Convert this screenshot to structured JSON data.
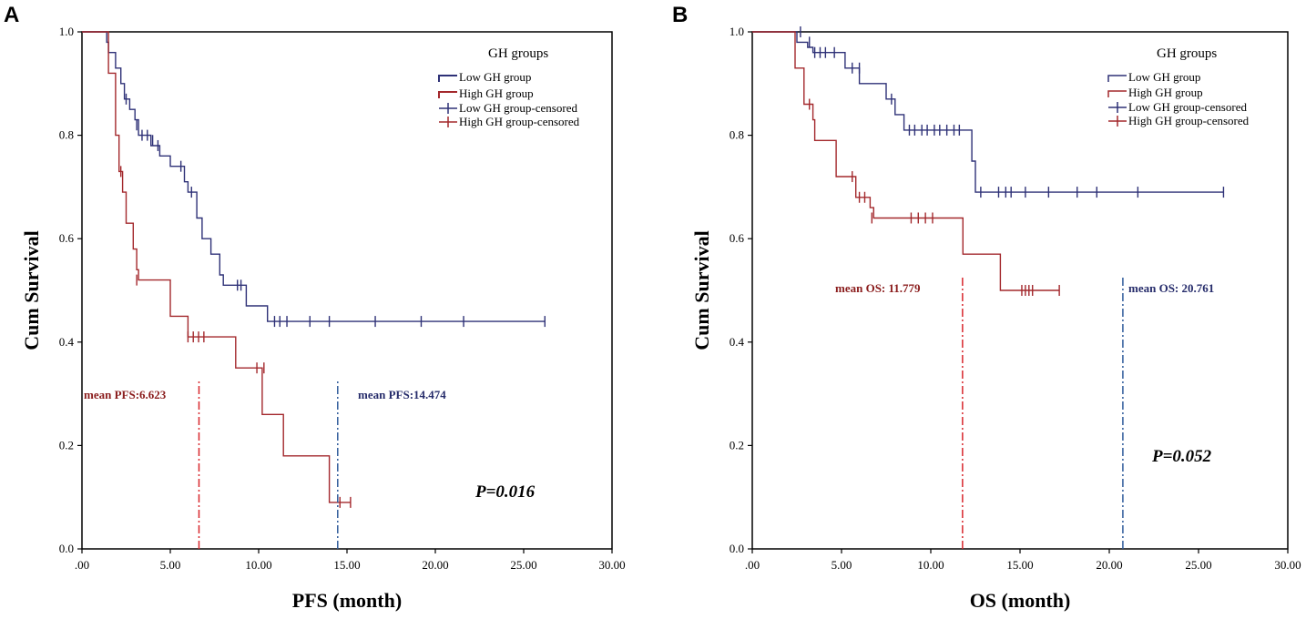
{
  "colors": {
    "low": "#2e3177",
    "high": "#a3282c",
    "low_text": "#262c6b",
    "high_text": "#8a1c1c",
    "high_mean_line": "#d8262b",
    "low_mean_line": "#2f5b9b"
  },
  "chart_data": [
    {
      "panel_label": "A",
      "type": "line",
      "step": true,
      "xlabel": "PFS (month)",
      "ylabel": "Cum Survival",
      "xlim": [
        0,
        30
      ],
      "ylim": [
        0,
        1
      ],
      "xticks": [
        ".00",
        "5.00",
        "10.00",
        "15.00",
        "20.00",
        "25.00",
        "30.00"
      ],
      "yticks": [
        "0.0",
        "0.2",
        "0.4",
        "0.6",
        "0.8",
        "1.0"
      ],
      "legend_title": "GH groups",
      "legend": [
        "Low GH group",
        "High GH group",
        "Low GH group-censored",
        "High GH group-censored"
      ],
      "p_value": "P=0.016",
      "series": [
        {
          "name": "Low GH group",
          "steps": [
            [
              0,
              1.0
            ],
            [
              1.3,
              1.0
            ],
            [
              1.4,
              0.98
            ],
            [
              1.5,
              0.96
            ],
            [
              1.9,
              0.93
            ],
            [
              2.2,
              0.9
            ],
            [
              2.4,
              0.87
            ],
            [
              2.7,
              0.85
            ],
            [
              3.0,
              0.83
            ],
            [
              3.2,
              0.8
            ],
            [
              3.9,
              0.78
            ],
            [
              4.4,
              0.76
            ],
            [
              5.0,
              0.74
            ],
            [
              5.8,
              0.71
            ],
            [
              6.0,
              0.69
            ],
            [
              6.5,
              0.64
            ],
            [
              6.8,
              0.6
            ],
            [
              7.3,
              0.57
            ],
            [
              7.8,
              0.53
            ],
            [
              8.0,
              0.51
            ],
            [
              9.1,
              0.51
            ],
            [
              9.3,
              0.47
            ],
            [
              10.5,
              0.44
            ],
            [
              26.2,
              0.44
            ]
          ],
          "censored": [
            [
              2.5,
              0.87
            ],
            [
              3.1,
              0.82
            ],
            [
              3.4,
              0.8
            ],
            [
              3.7,
              0.8
            ],
            [
              4.0,
              0.79
            ],
            [
              4.3,
              0.78
            ],
            [
              5.6,
              0.74
            ],
            [
              6.2,
              0.69
            ],
            [
              8.8,
              0.51
            ],
            [
              9.0,
              0.51
            ],
            [
              10.9,
              0.44
            ],
            [
              11.2,
              0.44
            ],
            [
              11.6,
              0.44
            ],
            [
              12.9,
              0.44
            ],
            [
              14.0,
              0.44
            ],
            [
              16.6,
              0.44
            ],
            [
              19.2,
              0.44
            ],
            [
              21.6,
              0.44
            ],
            [
              26.2,
              0.44
            ]
          ]
        },
        {
          "name": "High GH group",
          "steps": [
            [
              0,
              1.0
            ],
            [
              1.3,
              1.0
            ],
            [
              1.5,
              0.92
            ],
            [
              1.9,
              0.8
            ],
            [
              2.1,
              0.73
            ],
            [
              2.3,
              0.69
            ],
            [
              2.5,
              0.63
            ],
            [
              2.8,
              0.63
            ],
            [
              2.9,
              0.58
            ],
            [
              3.1,
              0.54
            ],
            [
              3.2,
              0.52
            ],
            [
              4.9,
              0.52
            ],
            [
              5.0,
              0.45
            ],
            [
              5.9,
              0.45
            ],
            [
              6.0,
              0.41
            ],
            [
              8.6,
              0.41
            ],
            [
              8.7,
              0.35
            ],
            [
              10.1,
              0.35
            ],
            [
              10.2,
              0.26
            ],
            [
              11.3,
              0.26
            ],
            [
              11.4,
              0.18
            ],
            [
              13.9,
              0.18
            ],
            [
              14.0,
              0.09
            ],
            [
              15.2,
              0.09
            ]
          ],
          "censored": [
            [
              2.2,
              0.73
            ],
            [
              3.1,
              0.52
            ],
            [
              6.0,
              0.41
            ],
            [
              6.3,
              0.41
            ],
            [
              6.6,
              0.41
            ],
            [
              6.9,
              0.41
            ],
            [
              9.9,
              0.35
            ],
            [
              10.3,
              0.35
            ],
            [
              14.6,
              0.09
            ],
            [
              15.2,
              0.09
            ]
          ]
        }
      ],
      "annotations": [
        {
          "label": "mean PFS:6.623",
          "value": 6.623,
          "group": "high"
        },
        {
          "label": "mean PFS:14.474",
          "value": 14.474,
          "group": "low"
        }
      ]
    },
    {
      "panel_label": "B",
      "type": "line",
      "step": true,
      "xlabel": "OS (month)",
      "ylabel": "Cum Survival",
      "xlim": [
        0,
        30
      ],
      "ylim": [
        0,
        1
      ],
      "xticks": [
        ".00",
        "5.00",
        "10.00",
        "15.00",
        "20.00",
        "25.00",
        "30.00"
      ],
      "yticks": [
        "0.0",
        "0.2",
        "0.4",
        "0.6",
        "0.8",
        "1.0"
      ],
      "legend_title": "GH groups",
      "legend": [
        "Low GH group",
        "High GH group",
        "Low GH group-censored",
        "High GH group-censored"
      ],
      "p_value": "P=0.052",
      "series": [
        {
          "name": "Low GH group",
          "steps": [
            [
              0,
              1.0
            ],
            [
              2.3,
              1.0
            ],
            [
              2.5,
              0.98
            ],
            [
              3.1,
              0.97
            ],
            [
              3.4,
              0.96
            ],
            [
              5.2,
              0.93
            ],
            [
              6.0,
              0.9
            ],
            [
              7.5,
              0.87
            ],
            [
              8.0,
              0.84
            ],
            [
              8.5,
              0.81
            ],
            [
              12.1,
              0.81
            ],
            [
              12.3,
              0.75
            ],
            [
              12.5,
              0.69
            ],
            [
              26.4,
              0.69
            ]
          ],
          "censored": [
            [
              2.7,
              1.0
            ],
            [
              3.2,
              0.98
            ],
            [
              3.5,
              0.96
            ],
            [
              3.8,
              0.96
            ],
            [
              4.1,
              0.96
            ],
            [
              4.6,
              0.96
            ],
            [
              5.6,
              0.93
            ],
            [
              6.0,
              0.93
            ],
            [
              7.8,
              0.87
            ],
            [
              8.8,
              0.81
            ],
            [
              9.1,
              0.81
            ],
            [
              9.5,
              0.81
            ],
            [
              9.8,
              0.81
            ],
            [
              10.2,
              0.81
            ],
            [
              10.5,
              0.81
            ],
            [
              10.9,
              0.81
            ],
            [
              11.3,
              0.81
            ],
            [
              11.6,
              0.81
            ],
            [
              12.8,
              0.69
            ],
            [
              13.8,
              0.69
            ],
            [
              14.2,
              0.69
            ],
            [
              14.5,
              0.69
            ],
            [
              15.3,
              0.69
            ],
            [
              16.6,
              0.69
            ],
            [
              18.2,
              0.69
            ],
            [
              19.3,
              0.69
            ],
            [
              21.6,
              0.69
            ],
            [
              26.4,
              0.69
            ]
          ]
        },
        {
          "name": "High GH group",
          "steps": [
            [
              0,
              1.0
            ],
            [
              2.3,
              1.0
            ],
            [
              2.4,
              0.93
            ],
            [
              2.9,
              0.86
            ],
            [
              3.4,
              0.83
            ],
            [
              3.5,
              0.79
            ],
            [
              4.6,
              0.79
            ],
            [
              4.7,
              0.72
            ],
            [
              5.5,
              0.72
            ],
            [
              5.8,
              0.68
            ],
            [
              6.6,
              0.66
            ],
            [
              6.8,
              0.64
            ],
            [
              11.7,
              0.64
            ],
            [
              11.8,
              0.57
            ],
            [
              13.8,
              0.57
            ],
            [
              13.9,
              0.5
            ],
            [
              17.2,
              0.5
            ]
          ],
          "censored": [
            [
              3.2,
              0.86
            ],
            [
              5.6,
              0.72
            ],
            [
              6.0,
              0.68
            ],
            [
              6.3,
              0.68
            ],
            [
              6.7,
              0.64
            ],
            [
              8.9,
              0.64
            ],
            [
              9.3,
              0.64
            ],
            [
              9.7,
              0.64
            ],
            [
              10.1,
              0.64
            ],
            [
              15.1,
              0.5
            ],
            [
              15.3,
              0.5
            ],
            [
              15.5,
              0.5
            ],
            [
              15.7,
              0.5
            ],
            [
              17.2,
              0.5
            ]
          ]
        }
      ],
      "annotations": [
        {
          "label": "mean OS: 11.779",
          "value": 11.779,
          "group": "high"
        },
        {
          "label": "mean OS: 20.761",
          "value": 20.761,
          "group": "low"
        }
      ]
    }
  ]
}
